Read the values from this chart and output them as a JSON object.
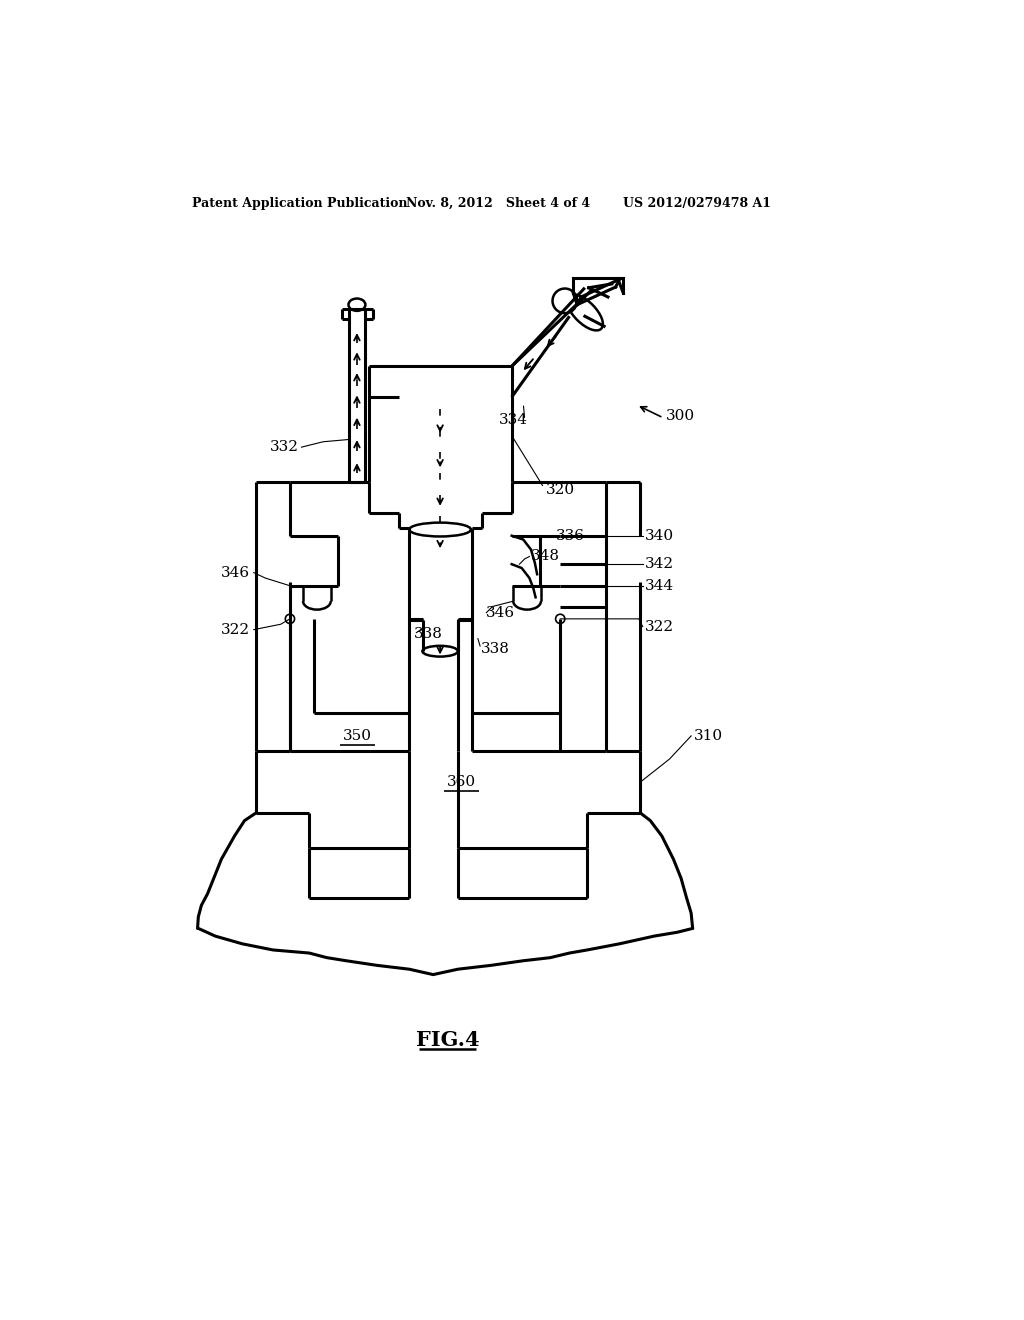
{
  "bg_color": "#ffffff",
  "header_left": "Patent Application Publication",
  "header_mid": "Nov. 8, 2012   Sheet 4 of 4",
  "header_right": "US 2012/0279478 A1",
  "figure_label": "FIG.4"
}
